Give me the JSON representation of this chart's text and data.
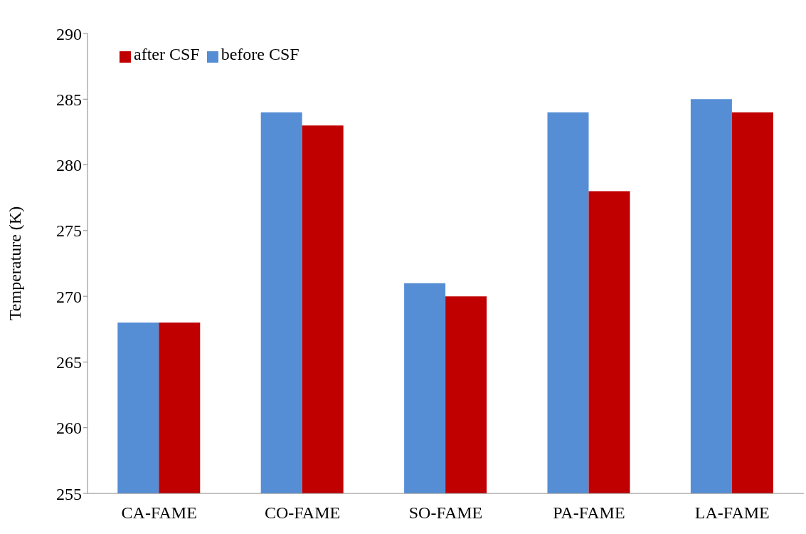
{
  "chart_data": {
    "type": "bar",
    "ylabel": "Temperature (K)",
    "categories": [
      "CA-FAME",
      "CO-FAME",
      "SO-FAME",
      "PA-FAME",
      "LA-FAME"
    ],
    "series": [
      {
        "name": "before CSF",
        "color": "#558ed5",
        "values": [
          268,
          284,
          271,
          284,
          285
        ]
      },
      {
        "name": "after CSF",
        "color": "#c00000",
        "values": [
          268,
          283,
          270,
          278,
          284
        ]
      }
    ],
    "ylim": [
      255,
      290
    ],
    "yticks": [
      255,
      260,
      265,
      270,
      275,
      280,
      285,
      290
    ],
    "grid": false,
    "legend": "top left"
  }
}
